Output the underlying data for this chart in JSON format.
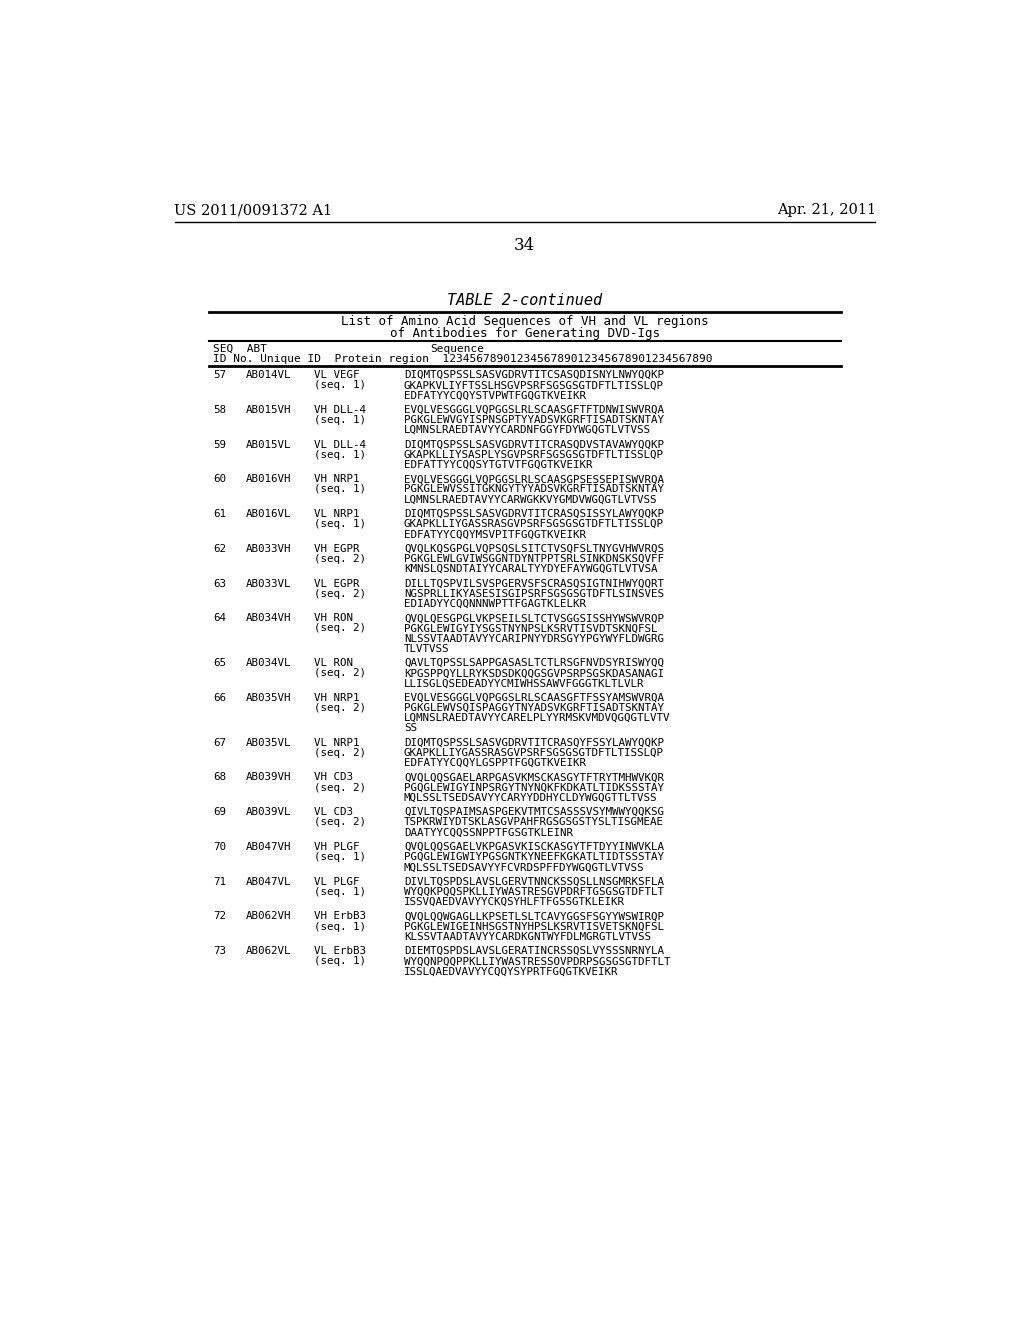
{
  "header_left": "US 2011/0091372 A1",
  "header_right": "Apr. 21, 2011",
  "page_number": "34",
  "table_title": "TABLE 2-continued",
  "table_subtitle1": "List of Amino Acid Sequences of VH and VL regions",
  "table_subtitle2": "of Antibodies for Generating DVD-Igs",
  "entries": [
    {
      "seq": "57",
      "abt": "AB014VL",
      "protein": "VL VEGF",
      "seq_label": "(seq. 1)",
      "lines": [
        "DIQMTQSPSSLSASVGDRVTITCSASQDISNYLNWYQQKP",
        "GKAPKVLIYFTSSLHSGVPSRFSGSGSGTDFTLTISSLQP",
        "EDFATYYCQQYSTVPWTFGQGTKVEIKR"
      ]
    },
    {
      "seq": "58",
      "abt": "AB015VH",
      "protein": "VH DLL-4",
      "seq_label": "(seq. 1)",
      "lines": [
        "EVQLVESGGGLVQPGGSLRLSCAASGFTFTDNWISWVRQA",
        "PGKGLEWVGYISPNSGPTYYADSVKGRFTISADTSKNTAY",
        "LQMNSLRAEDTAVYYCARDNFGGYFDYWGQGTLVTVSS"
      ]
    },
    {
      "seq": "59",
      "abt": "AB015VL",
      "protein": "VL DLL-4",
      "seq_label": "(seq. 1)",
      "lines": [
        "DIQMTQSPSSLSASVGDRVTITCRASQDVSTAVAWYQQKP",
        "GKAPKLLIYSASPLYSGVPSRFSGSGSGTDFTLTISSLQP",
        "EDFATTYYCQQSYTGTVTFGQGTKVEIKR"
      ]
    },
    {
      "seq": "60",
      "abt": "AB016VH",
      "protein": "VH NRP1",
      "seq_label": "(seq. 1)",
      "lines": [
        "EVQLVESGGGLVQPGGSLRLSCAASGPSESSEPISWVRQA",
        "PGKGLEWVSSITGKNGYTYYADSVKGRFTISADTSKNTAY",
        "LQMNSLRAEDTAVYYCARWGKKVYGMDVWGQGTLVTVSS"
      ]
    },
    {
      "seq": "61",
      "abt": "AB016VL",
      "protein": "VL NRP1",
      "seq_label": "(seq. 1)",
      "lines": [
        "DIQMTQSPSSLSASVGDRVTITCRASQSISSYLAWYQQKP",
        "GKAPKLLIYGASSRASGVPSRFSGSGSGTDFTLTISSLQP",
        "EDFATYYCQQYMSVPITFGQGTKVEIKR"
      ]
    },
    {
      "seq": "62",
      "abt": "AB033VH",
      "protein": "VH EGPR",
      "seq_label": "(seq. 2)",
      "lines": [
        "QVQLKQSGPGLVQPSQSLSITCTVSQFSLTNYGVHWVRQS",
        "PGKGLEWLGVIWSGGNTDYNTPPTSRLSINKDNSKSQVFF",
        "KMNSLQSNDTAIYYCARALTYYDYEFAYWGQGTLVTVSA"
      ]
    },
    {
      "seq": "63",
      "abt": "AB033VL",
      "protein": "VL EGPR",
      "seq_label": "(seq. 2)",
      "lines": [
        "DILLTQSPVILSVSPGERVSFSCRASQSIGTNIHWYQQRT",
        "NGSPRLLIKYASESISGIPSRFSGSGSGTDFTLSINSVES",
        "EDIADYYCQQNNNWPTTFGAGTKLELKR"
      ]
    },
    {
      "seq": "64",
      "abt": "AB034VH",
      "protein": "VH RON",
      "seq_label": "(seq. 2)",
      "lines": [
        "QVQLQESGPGLVKPSEILSLTCTVSGGSISSHYWSWVRQP",
        "PGKGLEWIGYIYSGSTNYNPSLKSRVTISVDTSKNQFSL",
        "NLSSVTAADTAVYYCARIPNYYDRSGYYPGYWYFLDWGRG",
        "TLVTVSS"
      ]
    },
    {
      "seq": "65",
      "abt": "AB034VL",
      "protein": "VL RON",
      "seq_label": "(seq. 2)",
      "lines": [
        "QAVLTQPSSLSAPPGASASLTCTLRSGFNVDSYRISWYQQ",
        "KPGSPPQYLLRYKSDSDKQQGSGVPSRPSGSKDASANAGI",
        "LLISGLQSEDEADYYCMIWHSSAWVFGGGTKLTLVLR"
      ]
    },
    {
      "seq": "66",
      "abt": "AB035VH",
      "protein": "VH NRP1",
      "seq_label": "(seq. 2)",
      "lines": [
        "EVQLVESGGGLVQPGGSLRLSCAASGFTFSSYAMSWVRQA",
        "PGKGLEWVSQISPAGGYTNYADSVKGRFTISADTSKNTAY",
        "LQMNSLRAEDTAVYYCARELPLYYRMSKVMDVQGQGTLVTV",
        "SS"
      ]
    },
    {
      "seq": "67",
      "abt": "AB035VL",
      "protein": "VL NRP1",
      "seq_label": "(seq. 2)",
      "lines": [
        "DIQMTQSPSSLSASVGDRVTITCRASQYFSSYLAWYQQKP",
        "GKAPKLLIYGASSRASGVPSRFSGSGSGTDFTLTISSLQP",
        "EDFATYYCQQYLGSPPTFGQGTKVEIKR"
      ]
    },
    {
      "seq": "68",
      "abt": "AB039VH",
      "protein": "VH CD3",
      "seq_label": "(seq. 2)",
      "lines": [
        "QVQLQQSGAELARPGASVKMSCKASGYTFTRYTMHWVKQR",
        "PGQGLEWIGYINPSRGYTNYNQKFKDKATLTIDKSSSTAY",
        "MQLSSLTSEDSAVYYCARYYDDHYCLDYWGQGTTLTVSS"
      ]
    },
    {
      "seq": "69",
      "abt": "AB039VL",
      "protein": "VL CD3",
      "seq_label": "(seq. 2)",
      "lines": [
        "QIVLTQSPAIMSASPGEKVTMTCSASSSVSYMWWYQQKSG",
        "TSPKRWIYDTSKLASGVPAHFRGSGSGSTYSLTISGMEAE",
        "DAATYYCQQSSNPPTFGSGTKLEINR"
      ]
    },
    {
      "seq": "70",
      "abt": "AB047VH",
      "protein": "VH PLGF",
      "seq_label": "(seq. 1)",
      "lines": [
        "QVQLQQSGAELVKPGASVKISCKASGYTFTDYYINWVKLA",
        "PGQGLEWIGWIYPGSGNTKYNEEFKGKATLTIDTSSSTAY",
        "MQLSSLTSEDSAVYYFCVRDSPFFDYWGQGTLVTVSS"
      ]
    },
    {
      "seq": "71",
      "abt": "AB047VL",
      "protein": "VL PLGF",
      "seq_label": "(seq. 1)",
      "lines": [
        "DIVLTQSPDSLAVSLGERVTNNCKSSQSLLNSGMRKSFLA",
        "WYQQKPQQSPKLLIYWASTRESGVPDRFTGSGSGTDFTLT",
        "ISSVQAEDVAVYYCKQSYHLFTFGSSGTKLEIKR"
      ]
    },
    {
      "seq": "72",
      "abt": "AB062VH",
      "protein": "VH ErbB3",
      "seq_label": "(seq. 1)",
      "lines": [
        "QVQLQQWGAGLLKPSETLSLTCAVYGGSFSGYYWSWIRQP",
        "PGKGLEWIGEINHSGSTNYHPSLKSRVTISVETSKNQFSL",
        "KLSSVTAADTAVYYCARDKGNTWYFDLMGRGTLVTVSS"
      ]
    },
    {
      "seq": "73",
      "abt": "AB062VL",
      "protein": "VL ErbB3",
      "seq_label": "(seq. 1)",
      "lines": [
        "DIEMTQSPDSLAVSLGERATINCRSSQSLVYSSSNRNYLA",
        "WYQQNPQQPPKLLIYWASTRESSOVPDRPSGSGSGTDFTLT",
        "ISSLQAEDVAVYYCQQYSYPRTFGQGTKVEIKR"
      ]
    }
  ]
}
